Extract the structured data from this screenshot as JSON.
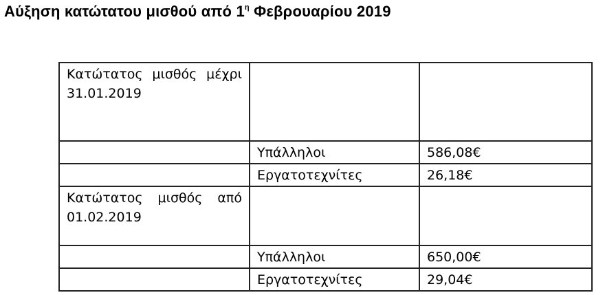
{
  "title": {
    "main": "Αύξηση κατώτατου μισθού από 1",
    "sup": "η",
    "rest": " Φεβρουαρίου 2019"
  },
  "table": {
    "sections": [
      {
        "label": "Κατώτατος μισθός μέχρι 31.01.2019",
        "rows": [
          {
            "category": "Υπάλληλοι",
            "value": "586,08€"
          },
          {
            "category": "Εργατοτεχνίτες",
            "value": "26,18€"
          }
        ]
      },
      {
        "label": "Κατώτατος μισθός από 01.02.2019",
        "rows": [
          {
            "category": "Υπάλληλοι",
            "value": "650,00€"
          },
          {
            "category": "Εργατοτεχνίτες",
            "value": "29,04€"
          }
        ]
      }
    ]
  }
}
